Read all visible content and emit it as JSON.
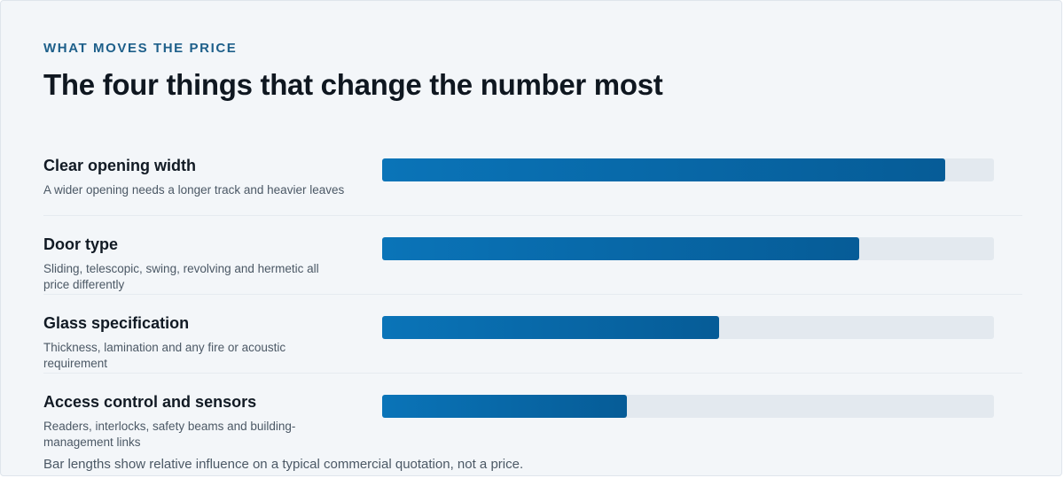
{
  "header": {
    "eyebrow": "WHAT MOVES THE PRICE",
    "title": "The four things that change the number most"
  },
  "chart_data": {
    "type": "bar",
    "orientation": "horizontal",
    "categories": [
      "Clear opening width",
      "Door type",
      "Glass specification",
      "Access control and sensors"
    ],
    "descriptions": [
      "A wider opening needs a longer track and heavier leaves",
      "Sliding, telescopic, swing, revolving and hermetic all price differently",
      "Thickness, lamination and any fire or acoustic requirement",
      "Readers, interlocks, safety beams and building-management links"
    ],
    "values": [
      92,
      78,
      55,
      40
    ],
    "xlim": [
      0,
      100
    ],
    "grid": false,
    "legend": "none",
    "colors": {
      "bar_start": "#0a74b8",
      "bar_end": "#065c97",
      "track": "#e3e9ef"
    }
  },
  "footnote": "Bar lengths show relative influence on a typical commercial quotation, not a price."
}
